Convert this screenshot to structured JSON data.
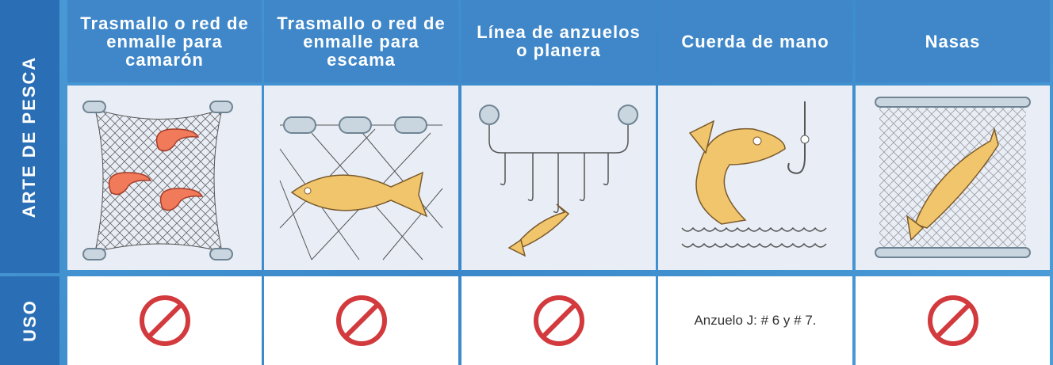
{
  "row_labels": [
    "ARTE DE PESCA",
    "USO"
  ],
  "columns": [
    {
      "header": "Trasmallo o red de enmalle para camarón"
    },
    {
      "header": "Trasmallo o red de enmalle para escama"
    },
    {
      "header": "Línea de anzuelos o planera"
    },
    {
      "header": "Cuerda de mano",
      "uso": "Anzuelo J: # 6 y # 7."
    },
    {
      "header": "Nasas"
    }
  ]
}
